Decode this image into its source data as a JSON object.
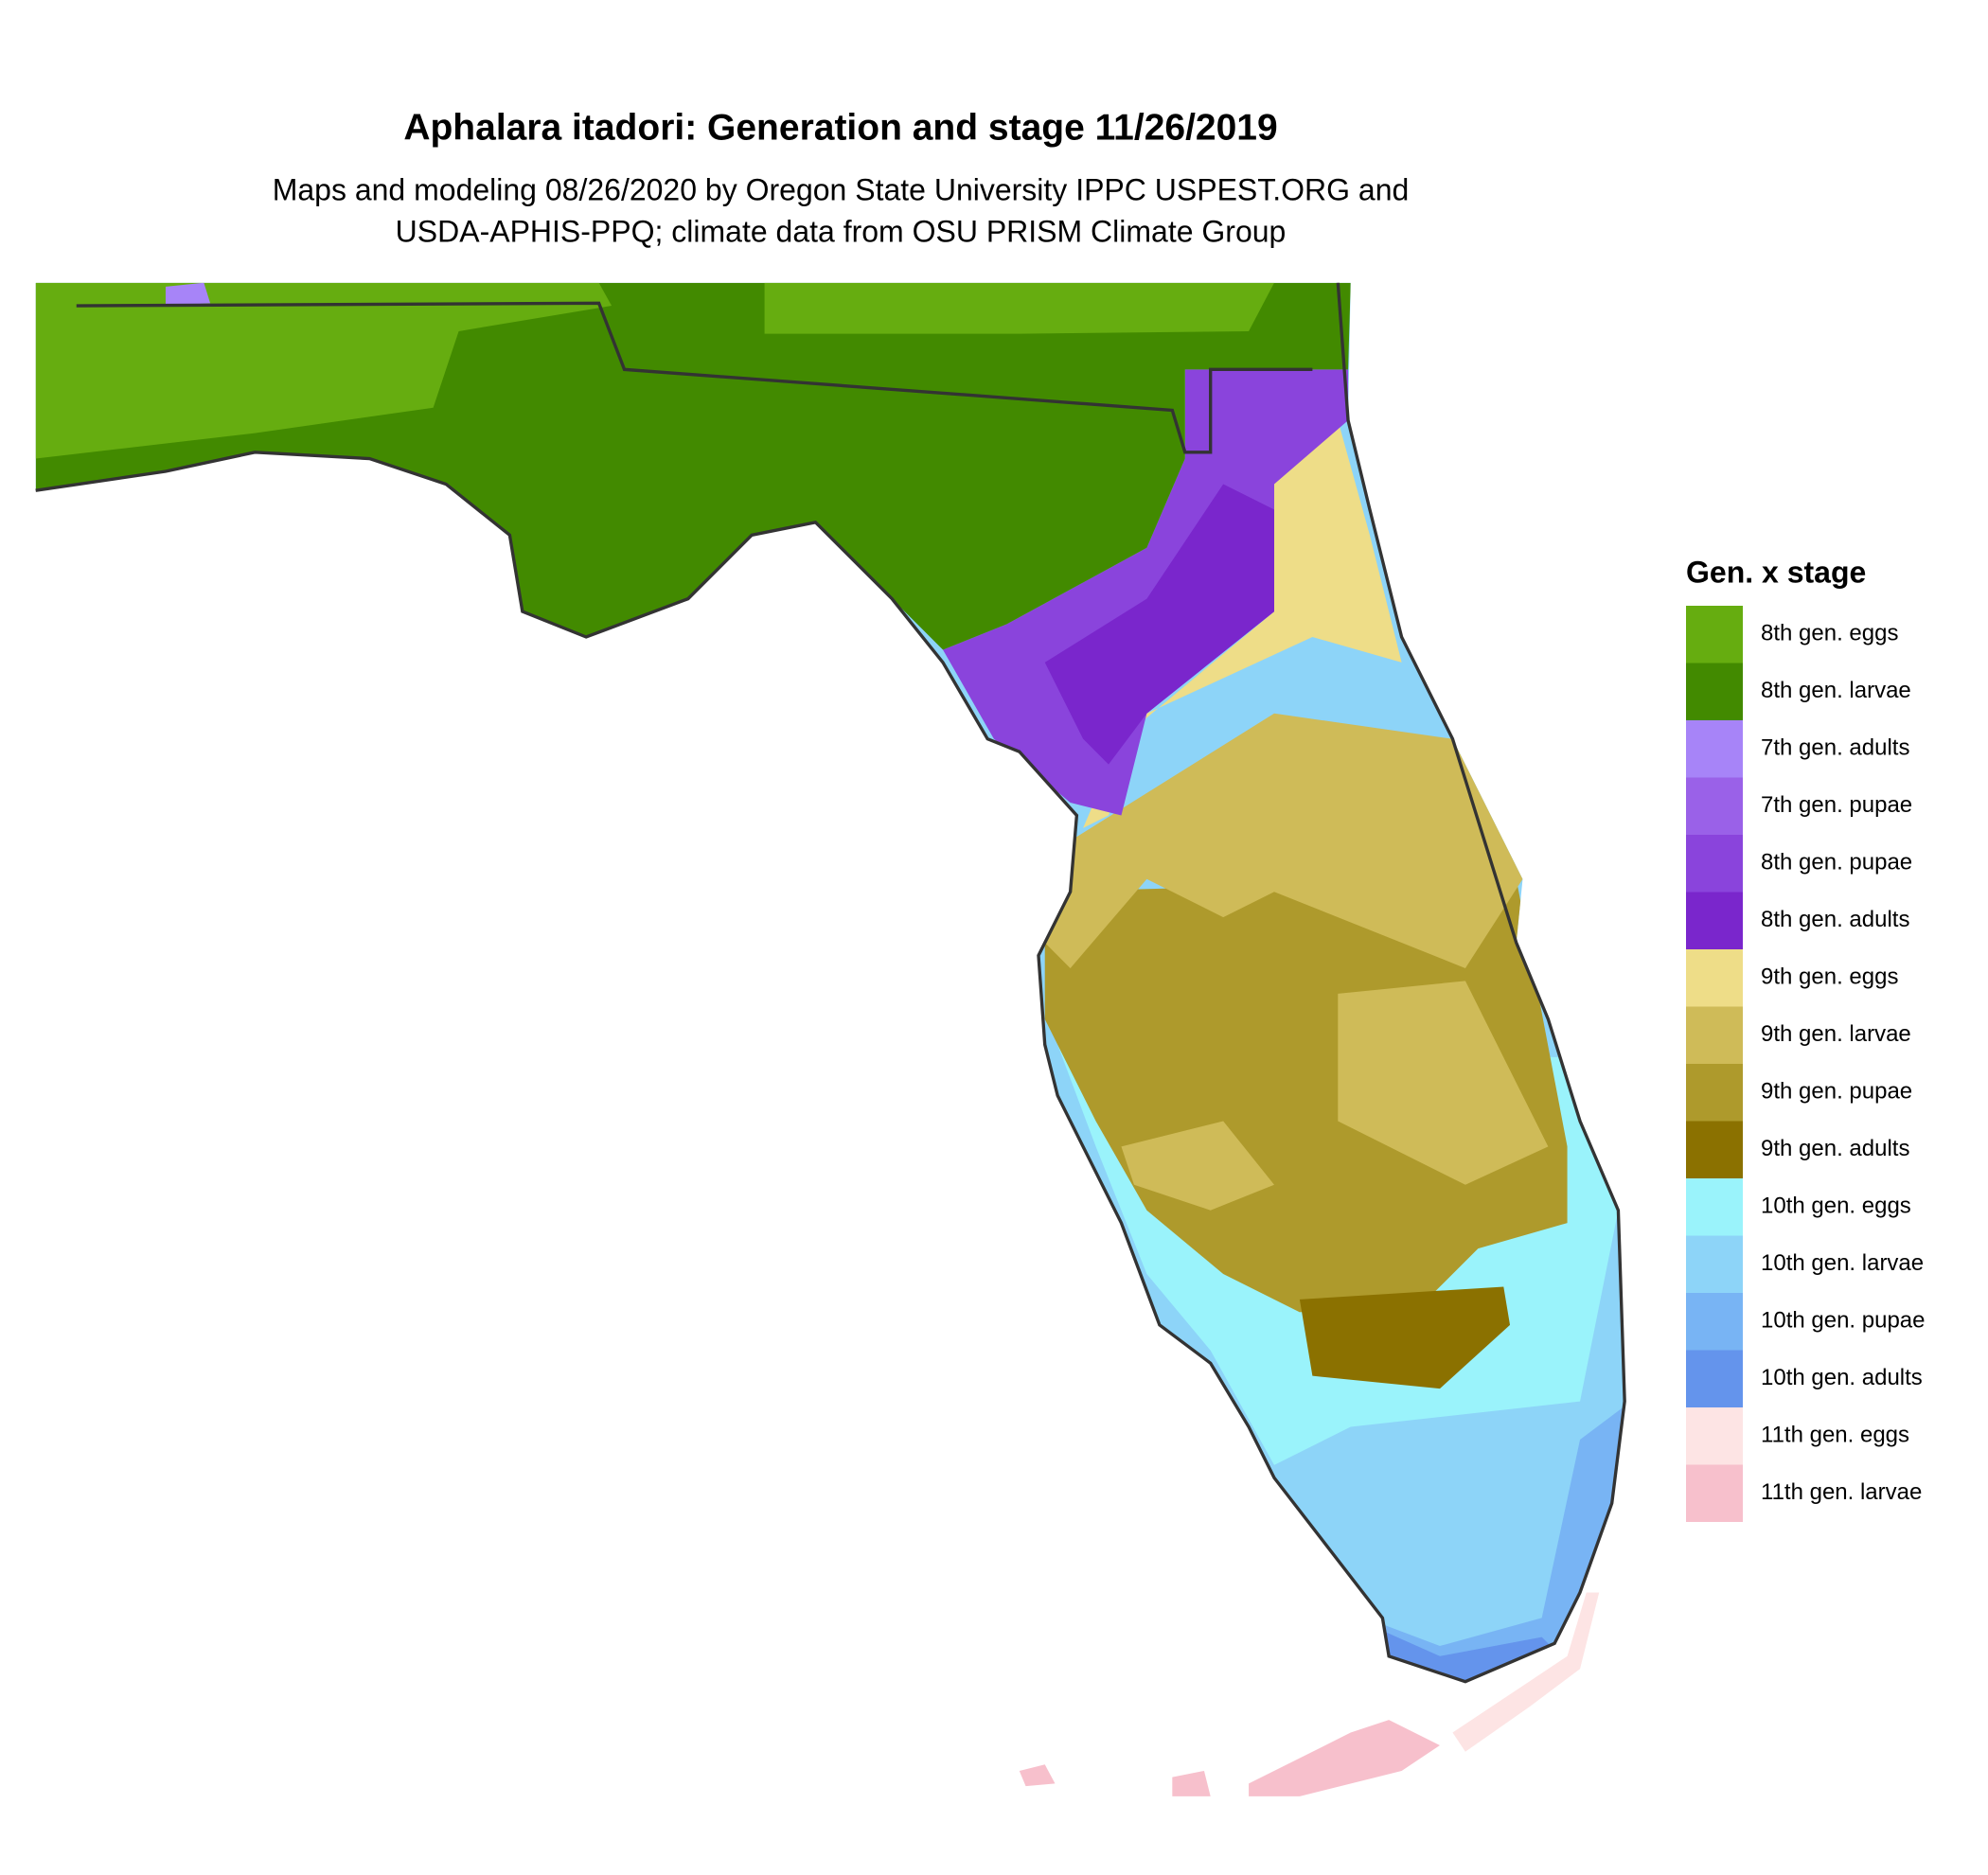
{
  "header": {
    "title": "Aphalara itadori: Generation and stage 11/26/2019",
    "subtitle_lines": [
      "Maps and modeling 08/26/2020 by Oregon State University IPPC USPEST.ORG and",
      "USDA-APHIS-PPQ; climate data from OSU PRISM Climate Group"
    ]
  },
  "legend": {
    "title": "Gen. x stage",
    "items": [
      {
        "label": "8th gen. eggs",
        "color": "#66ad10"
      },
      {
        "label": "8th gen. larvae",
        "color": "#428a00"
      },
      {
        "label": "7th gen. adults",
        "color": "#a784f8"
      },
      {
        "label": "7th gen. pupae",
        "color": "#9a61e8"
      },
      {
        "label": "8th gen. pupae",
        "color": "#8a44dc"
      },
      {
        "label": "8th gen. adults",
        "color": "#7a26cc"
      },
      {
        "label": "9th gen. eggs",
        "color": "#eedd88"
      },
      {
        "label": "9th gen. larvae",
        "color": "#cfbb58"
      },
      {
        "label": "9th gen. pupae",
        "color": "#ae9a2c"
      },
      {
        "label": "9th gen. adults",
        "color": "#8b7100"
      },
      {
        "label": "10th gen. eggs",
        "color": "#9af3fb"
      },
      {
        "label": "10th gen. larvae",
        "color": "#8dd4f8"
      },
      {
        "label": "10th gen. pupae",
        "color": "#78b4f4"
      },
      {
        "label": "10th gen. adults",
        "color": "#6494ec"
      },
      {
        "label": "11th gen. eggs",
        "color": "#fde4e4"
      },
      {
        "label": "11th gen. larvae",
        "color": "#f7c0cc"
      }
    ]
  }
}
